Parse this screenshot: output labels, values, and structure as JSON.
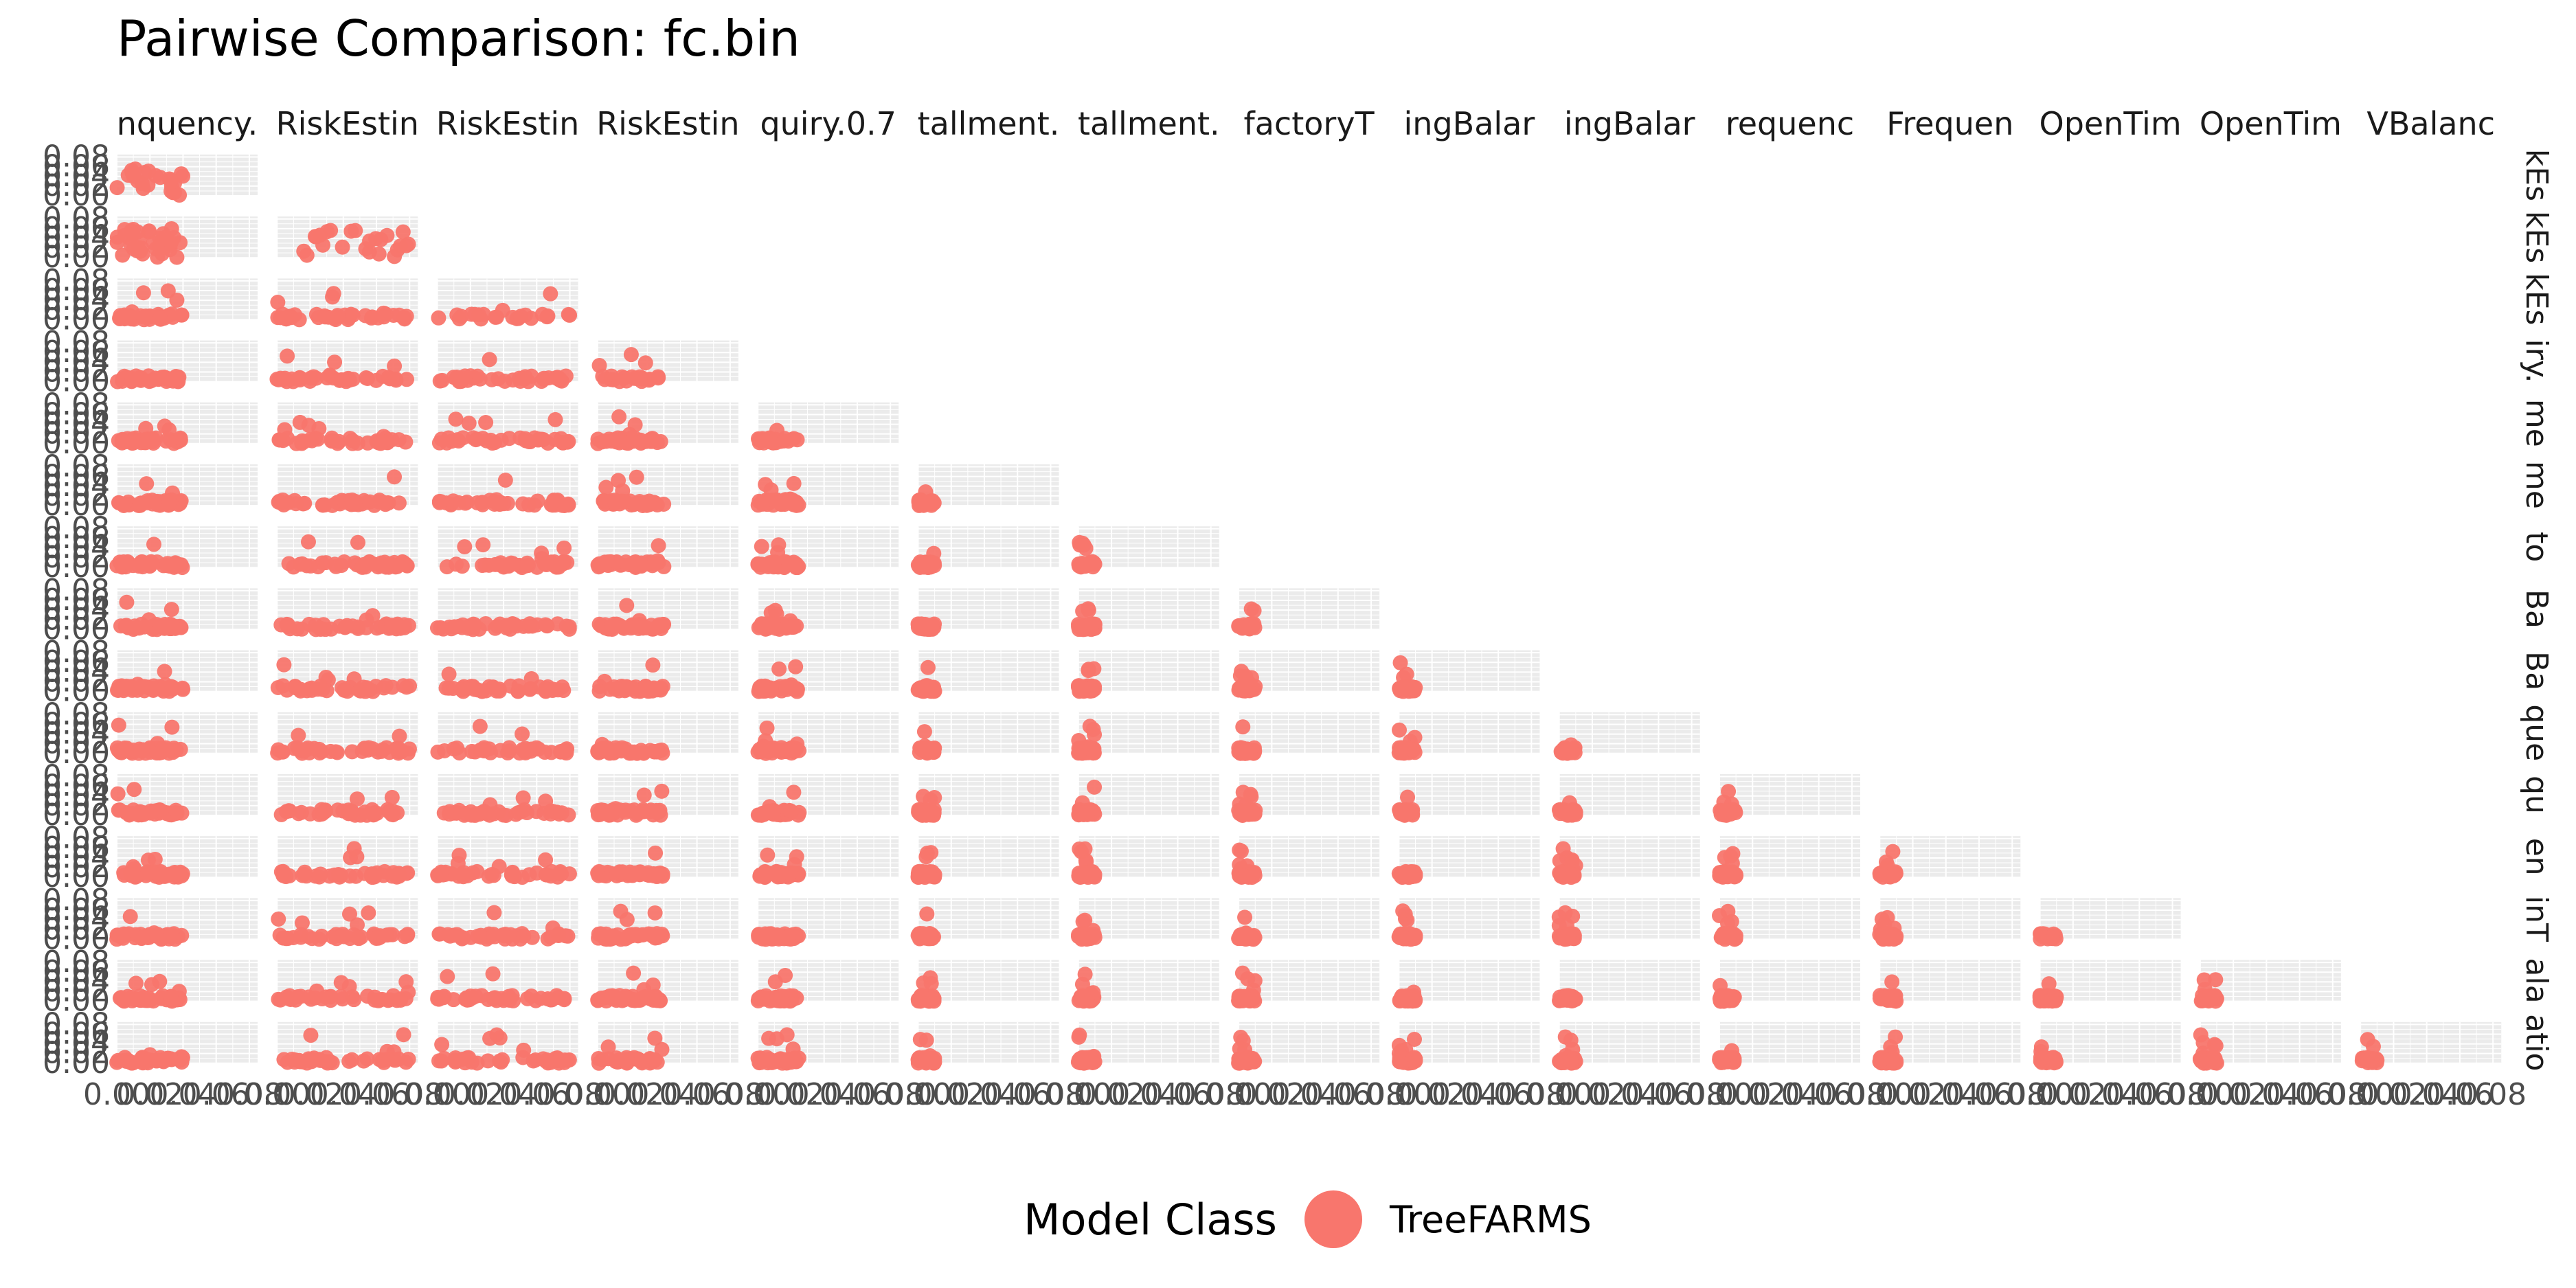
{
  "chart_data": {
    "type": "scatter",
    "title": "Pairwise Comparison: fc.bin",
    "panel_grid": "lower-triangular",
    "grid": true,
    "column_strip_labels": [
      "nquency.",
      "RiskEstin",
      "RiskEstin",
      "RiskEstin",
      "quiry.0.7",
      "tallment.",
      "tallment.",
      "factoryT",
      "ingBalar",
      "ingBalar",
      "requenc",
      "Frequen",
      "OpenTim",
      "OpenTim",
      "VBalanc"
    ],
    "row_strip_labels": [
      "kEs",
      "kEs",
      "kEs",
      "iry.",
      "me",
      "me",
      "to",
      "Ba",
      "Ba",
      "que",
      "qu",
      "en",
      "inT",
      "ala",
      "atio"
    ],
    "x_tick_labels": [
      "0.00",
      "0.02",
      "0.04",
      "0.06",
      "0.08"
    ],
    "y_tick_labels": [
      "0.00",
      "0.02",
      "0.04",
      "0.06",
      "0.08"
    ],
    "xlim": [
      0,
      0.085
    ],
    "ylim": [
      0,
      0.085
    ],
    "series": [
      {
        "name": "TreeFARMS",
        "color": "#F8766D"
      }
    ],
    "legend": {
      "title": "Model Class",
      "position": "bottom"
    }
  },
  "colors": {
    "point": "#F8766D",
    "panel_background": "#EBEBEB",
    "grid_line": "#FFFFFF",
    "axis_text": "#4D4D4D"
  }
}
